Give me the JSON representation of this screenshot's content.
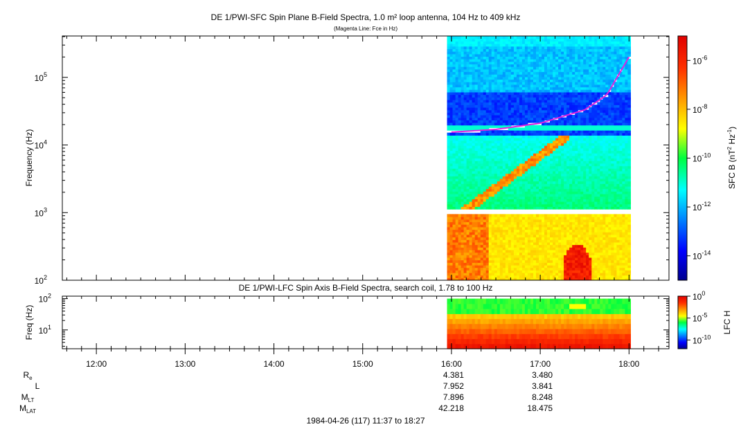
{
  "chart_data": [
    {
      "type": "heatmap",
      "title": "DE 1/PWI-SFC  Spin Plane B-Field Spectra, 1.0 m² loop antenna, 104 Hz to 409 kHz",
      "subtitle": "(Magenta Line: Fce in Hz)",
      "ylabel": "Frequency (Hz)",
      "yscale": "log",
      "ylim": [
        100,
        409000
      ],
      "yticks": [
        {
          "v": 100,
          "label": "10",
          "exp": "2"
        },
        {
          "v": 1000,
          "label": "10",
          "exp": "3"
        },
        {
          "v": 10000,
          "label": "10",
          "exp": "4"
        },
        {
          "v": 100000,
          "label": "10",
          "exp": "5"
        }
      ],
      "data_time_range": [
        "15:57",
        "18:01"
      ],
      "gap_freq_hz": [
        1000,
        1100
      ],
      "colorbar": {
        "label": "SFC B (nT",
        "label_exp1": "2",
        "label_mid": " Hz",
        "label_exp2": "-1",
        "label_end": ")",
        "scale": "log",
        "range": [
          1e-15,
          1e-05
        ],
        "ticks": [
          {
            "v": 1e-06,
            "label": "10",
            "exp": "-6"
          },
          {
            "v": 1e-08,
            "label": "10",
            "exp": "-8"
          },
          {
            "v": 1e-10,
            "label": "10",
            "exp": "-10"
          },
          {
            "v": 1e-12,
            "label": "10",
            "exp": "-12"
          },
          {
            "v": 1e-14,
            "label": "10",
            "exp": "-14"
          }
        ]
      },
      "fce_line": {
        "color": "#e020e0",
        "points": [
          [
            "16:00",
            15500
          ],
          [
            "16:30",
            17000
          ],
          [
            "17:00",
            21000
          ],
          [
            "17:30",
            33000
          ],
          [
            "17:45",
            55000
          ],
          [
            "18:00",
            200000
          ]
        ]
      }
    },
    {
      "type": "heatmap",
      "title": "DE 1/PWI-LFC  Spin Axis B-Field Spectra, search coil, 1.78 to 100 Hz",
      "ylabel": "Freq (Hz)",
      "yscale": "log",
      "ylim": [
        2.5,
        120
      ],
      "yticks": [
        {
          "v": 10,
          "label": "10",
          "exp": "1"
        },
        {
          "v": 100,
          "label": "10",
          "exp": "2"
        }
      ],
      "data_time_range": [
        "15:57",
        "18:01"
      ],
      "colorbar": {
        "label": "LFC H",
        "scale": "log",
        "range": [
          1e-12,
          1
        ],
        "ticks": [
          {
            "v": 1,
            "label": "10",
            "exp": "0"
          },
          {
            "v": 1e-05,
            "label": "10",
            "exp": "-5"
          },
          {
            "v": 1e-10,
            "label": "10",
            "exp": "-10"
          }
        ]
      }
    }
  ],
  "x_axis": {
    "range": [
      "11:37",
      "18:27"
    ],
    "ticks": [
      "12:00",
      "13:00",
      "14:00",
      "15:00",
      "16:00",
      "17:00",
      "18:00"
    ]
  },
  "ephemeris": {
    "rows": [
      {
        "label": "R",
        "sub": "e",
        "values": {
          "16:00": "4.381",
          "17:00": "3.480"
        }
      },
      {
        "label": "L",
        "sub": "",
        "values": {
          "16:00": "7.952",
          "17:00": "3.841"
        }
      },
      {
        "label": "M",
        "sub": "LT",
        "values": {
          "16:00": "7.896",
          "17:00": "8.248"
        }
      },
      {
        "label": "M",
        "sub": "LAT",
        "values": {
          "16:00": "42.218",
          "17:00": "18.475"
        }
      }
    ]
  },
  "date_range": "1984-04-26 (117) 11:37 to 18:27"
}
